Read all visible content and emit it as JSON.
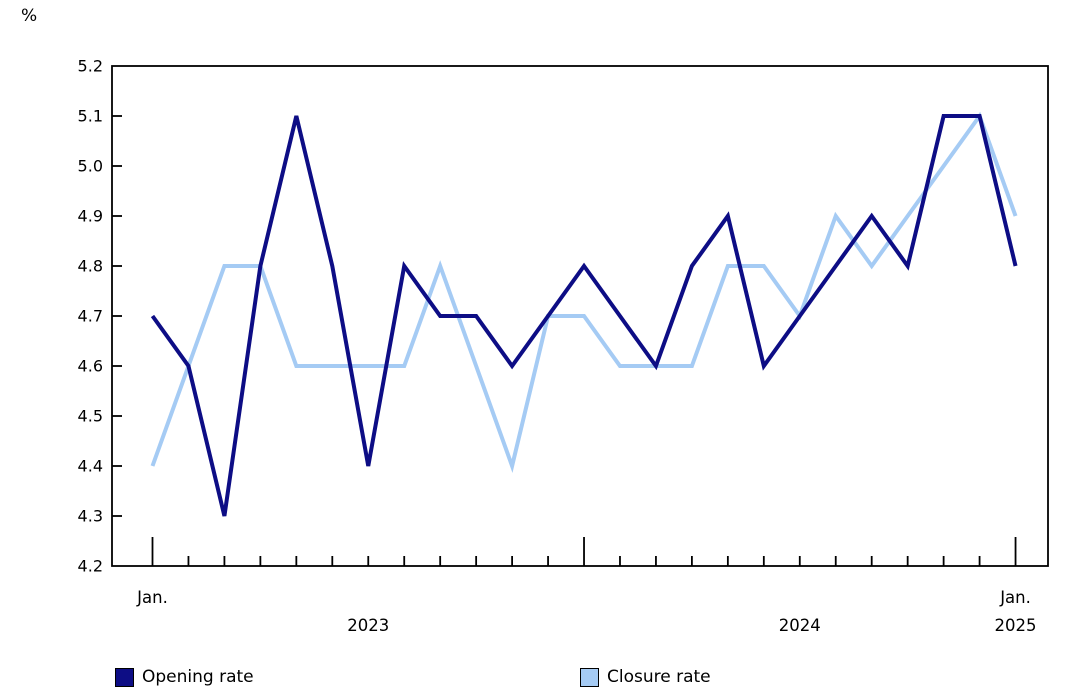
{
  "chart": {
    "unit_label": "%",
    "legend": [
      {
        "label": "Opening rate",
        "swatch_color": "#0D0D85"
      },
      {
        "label": "Closure rate",
        "swatch_color": "#A5CBF4"
      }
    ]
  },
  "chart_data": {
    "type": "line",
    "title": "",
    "unit": "%",
    "ylabel": "%",
    "xlabel": "",
    "ylim": [
      4.2,
      5.2
    ],
    "ytick_step": 0.1,
    "grid": false,
    "legend_position": "bottom",
    "x_categories": [
      "Jan 2023",
      "Feb 2023",
      "Mar 2023",
      "Apr 2023",
      "May 2023",
      "Jun 2023",
      "Jul 2023",
      "Aug 2023",
      "Sep 2023",
      "Oct 2023",
      "Nov 2023",
      "Dec 2023",
      "Jan 2024",
      "Feb 2024",
      "Mar 2024",
      "Apr 2024",
      "May 2024",
      "Jun 2024",
      "Jul 2024",
      "Aug 2024",
      "Sep 2024",
      "Oct 2024",
      "Nov 2024",
      "Dec 2024",
      "Jan 2025"
    ],
    "x_axis_labels": [
      {
        "text": "Jan.",
        "month_index": 0,
        "row": 1
      },
      {
        "text": "2023",
        "month_index": 6,
        "row": 2
      },
      {
        "text": "2024",
        "month_index": 18,
        "row": 2
      },
      {
        "text": "Jan.",
        "month_index": 24,
        "row": 1
      },
      {
        "text": "2025",
        "month_index": 24,
        "row": 2
      }
    ],
    "tall_tick_month_indices": [
      0,
      12,
      24
    ],
    "series": [
      {
        "name": "Opening rate",
        "color": "#0D0D85",
        "values": [
          4.7,
          4.6,
          4.3,
          4.8,
          5.1,
          4.8,
          4.4,
          4.8,
          4.7,
          4.7,
          4.6,
          4.7,
          4.8,
          4.7,
          4.6,
          4.8,
          4.9,
          4.6,
          4.7,
          4.8,
          4.9,
          4.8,
          5.1,
          5.1,
          4.8
        ]
      },
      {
        "name": "Closure rate",
        "color": "#A5CBF4",
        "values": [
          4.4,
          4.6,
          4.8,
          4.8,
          4.6,
          4.6,
          4.6,
          4.6,
          4.8,
          4.6,
          4.4,
          4.7,
          4.7,
          4.6,
          4.6,
          4.6,
          4.8,
          4.8,
          4.7,
          4.9,
          4.8,
          4.9,
          5.0,
          5.1,
          4.9
        ]
      }
    ]
  }
}
